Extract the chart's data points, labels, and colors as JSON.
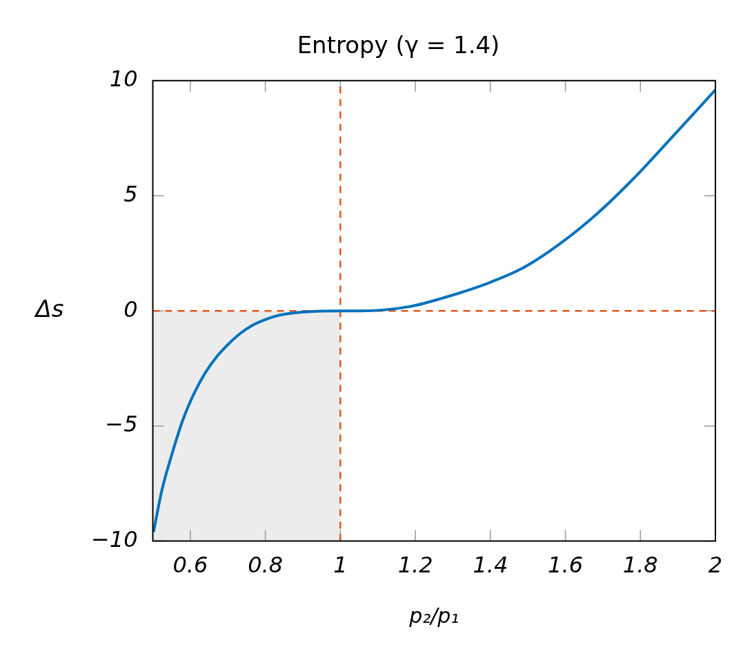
{
  "chart_data": {
    "type": "line",
    "title": "Entropy (γ = 1.4)",
    "xlabel": "p₂/p₁",
    "ylabel": "Δs",
    "xlim": [
      0.5,
      2
    ],
    "xticks": [
      0.6,
      0.8,
      1,
      1.2,
      1.4,
      1.6,
      1.8,
      2
    ],
    "ylim": [
      -10,
      10
    ],
    "yticks": [
      {
        "value": -10,
        "label": "−10"
      },
      {
        "value": -5,
        "label": "−5"
      },
      0,
      5,
      10
    ],
    "grid": false,
    "legend": false,
    "marker": "none",
    "line_style": "solid",
    "ref_lines": [
      {
        "axis": "x",
        "value": 1,
        "color": "#e0561c",
        "line_style": "dashed"
      },
      {
        "axis": "y",
        "value": 0,
        "color": "#e0561c",
        "line_style": "dashed"
      }
    ],
    "bands": [
      {
        "axis": "x",
        "from": 0.5,
        "to": 1,
        "color": "#ececec"
      }
    ],
    "series": [
      {
        "color": "#0072bd",
        "x": [
          0.502,
          0.524,
          0.549,
          0.58,
          0.611,
          0.641,
          0.672,
          0.703,
          0.734,
          0.765,
          0.796,
          0.827,
          0.87,
          0.92,
          1,
          1.054,
          1.186,
          1.286,
          1.385,
          1.484,
          1.584,
          1.683,
          1.782,
          1.882,
          2
        ],
        "values": [
          -9.6,
          -7.8,
          -6.33,
          -4.74,
          -3.55,
          -2.66,
          -1.96,
          -1.42,
          -0.97,
          -0.63,
          -0.4,
          -0.23,
          -0.1,
          -0.03,
          0,
          0,
          0.19,
          0.62,
          1.15,
          1.84,
          2.9,
          4.2,
          5.75,
          7.5,
          9.6
        ]
      }
    ]
  }
}
